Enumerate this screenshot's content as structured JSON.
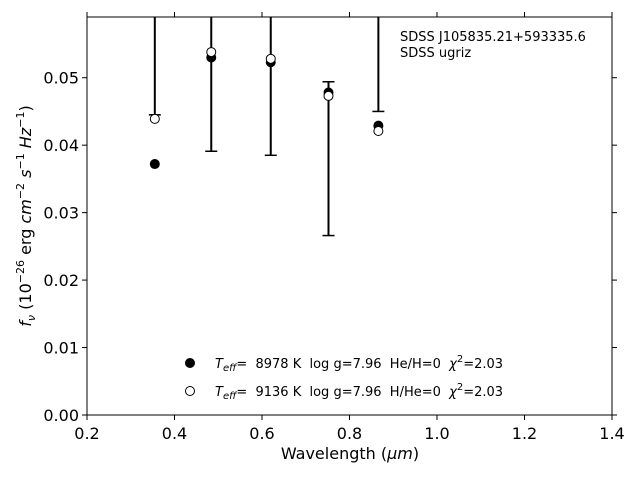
{
  "chart_data": {
    "type": "scatter",
    "xlabel_main": "Wavelength (",
    "xlabel_unit": "μm",
    "xlabel_close": ")",
    "ylabel": "f_ν (10^-26 erg cm^-2 s^-1 Hz^-1)",
    "xlim": [
      0.2,
      1.4
    ],
    "ylim": [
      0.0,
      0.059
    ],
    "x_ticks": [
      "0.2",
      "0.4",
      "0.6",
      "0.8",
      "1.0",
      "1.2",
      "1.4"
    ],
    "y_ticks": [
      "0.00",
      "0.01",
      "0.02",
      "0.03",
      "0.04",
      "0.05"
    ],
    "annotations": [
      "SDSS J105835.21+593335.6",
      "SDSS ugriz"
    ],
    "observed": {
      "x": [
        0.355,
        0.484,
        0.62,
        0.752,
        0.866
      ],
      "y": [
        0.058,
        0.053,
        0.06,
        0.038,
        0.057
      ],
      "err_low": [
        0.0135,
        0.0139,
        0.0215,
        0.0114,
        0.012
      ],
      "err_high": [
        0.0135,
        0.0139,
        0.0215,
        0.0114,
        0.012
      ]
    },
    "series": [
      {
        "name": "Teff= 8978 K log g=7.96 He/H=0 χ2=2.03",
        "marker": "filled",
        "x": [
          0.355,
          0.484,
          0.62,
          0.752,
          0.866
        ],
        "y": [
          0.0372,
          0.053,
          0.0523,
          0.0478,
          0.0429
        ]
      },
      {
        "name": "Teff= 9136 K log g=7.96 H/He=0 χ2=2.03",
        "marker": "open",
        "x": [
          0.355,
          0.484,
          0.62,
          0.752,
          0.866
        ],
        "y": [
          0.0439,
          0.0538,
          0.0528,
          0.0473,
          0.0421
        ]
      }
    ],
    "legend": [
      {
        "teff_label": "T",
        "teff_sub": "eff",
        "rest": "=  8978 K  log g=7.96  He/H=0  ",
        "chi": "χ",
        "chi_sup": "2",
        "chi_rest": "=2.03"
      },
      {
        "teff_label": "T",
        "teff_sub": "eff",
        "rest": "=  9136 K  log g=7.96  H/He=0  ",
        "chi": "χ",
        "chi_sup": "2",
        "chi_rest": "=2.03"
      }
    ],
    "legend_location": "lower-center",
    "grid": false
  }
}
